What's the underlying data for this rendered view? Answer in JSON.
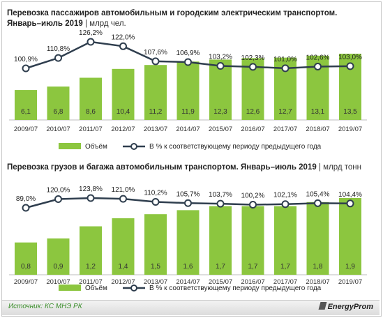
{
  "chart1": {
    "title": "Перевозка пассажиров автомобильным и городским электрическим транспортом. Январь–июль 2019",
    "title_line1": "Перевозка пассажиров автомобильным  и городским электрическим транспортом.",
    "title_line2": "Январь–июль  2019",
    "unit": "| млрд чел."
  },
  "chart2": {
    "title_line1": "Перевозка грузов и багажа автомобильным транспортом. Январь–июль 2019",
    "unit": "| млрд тонн"
  },
  "footer": {
    "source": "Источник: КС МНЭ РК",
    "logo": "EnergyProm"
  },
  "colors": {
    "bar": "#8cc63f",
    "line": "#2f3e4e",
    "bar_label": "#333333"
  },
  "chart_data": [
    {
      "type": "bar",
      "title": "Перевозка пассажиров автомобильным и городским электрическим транспортом. Январь–июль 2019",
      "ylabel": "млрд чел.",
      "categories": [
        "2009/07",
        "2010/07",
        "2011/07",
        "2012/07",
        "2013/07",
        "2014/07",
        "2015/07",
        "2016/07",
        "2017/07",
        "2018/07",
        "2019/07"
      ],
      "series": [
        {
          "name": "Объём",
          "type": "bar",
          "values": [
            6.1,
            6.8,
            8.6,
            10.4,
            11.2,
            11.9,
            12.3,
            12.6,
            12.7,
            13.1,
            13.5
          ],
          "labels": [
            "6,1",
            "6,8",
            "8,6",
            "10,4",
            "11,2",
            "11,9",
            "12,3",
            "12,6",
            "12,7",
            "13,1",
            "13,5"
          ]
        },
        {
          "name": "В % к соответствующему периоду предыдущего года",
          "type": "line",
          "values": [
            100.9,
            110.8,
            126.2,
            122.0,
            107.6,
            106.9,
            103.2,
            102.3,
            101.0,
            102.6,
            103.0
          ],
          "labels": [
            "100,9%",
            "110,8%",
            "126,2%",
            "122,0%",
            "107,6%",
            "106,9%",
            "103,2%",
            "102,3%",
            "101,0%",
            "102,6%",
            "103,0%"
          ]
        }
      ],
      "legend": [
        "Объём",
        "В % к соответствующему периоду предыдущего года"
      ],
      "legend_position": "bottom"
    },
    {
      "type": "bar",
      "title": "Перевозка грузов и багажа автомобильным транспортом. Январь–июль 2019",
      "ylabel": "млрд тонн",
      "categories": [
        "2009/07",
        "2010/07",
        "2011/07",
        "2012/07",
        "2013/07",
        "2014/07",
        "2015/07",
        "2016/07",
        "2017/07",
        "2018/07",
        "2019/07"
      ],
      "series": [
        {
          "name": "Объём",
          "type": "bar",
          "values": [
            0.8,
            0.9,
            1.2,
            1.4,
            1.5,
            1.6,
            1.7,
            1.7,
            1.7,
            1.8,
            1.9
          ],
          "labels": [
            "0,8",
            "0,9",
            "1,2",
            "1,4",
            "1,5",
            "1,6",
            "1,7",
            "1,7",
            "1,7",
            "1,8",
            "1,9"
          ]
        },
        {
          "name": "В % к соответствующему периоду предыдущего года",
          "type": "line",
          "values": [
            89.0,
            120.0,
            123.8,
            121.0,
            110.2,
            105.7,
            103.7,
            100.2,
            102.1,
            105.4,
            104.4
          ],
          "labels": [
            "89,0%",
            "120,0%",
            "123,8%",
            "121,0%",
            "110,2%",
            "105,7%",
            "103,7%",
            "100,2%",
            "102,1%",
            "105,4%",
            "104,4%"
          ]
        }
      ],
      "legend": [
        "Объём",
        "В % к соответствующему периоду предыдущего года"
      ],
      "legend_position": "bottom"
    }
  ]
}
